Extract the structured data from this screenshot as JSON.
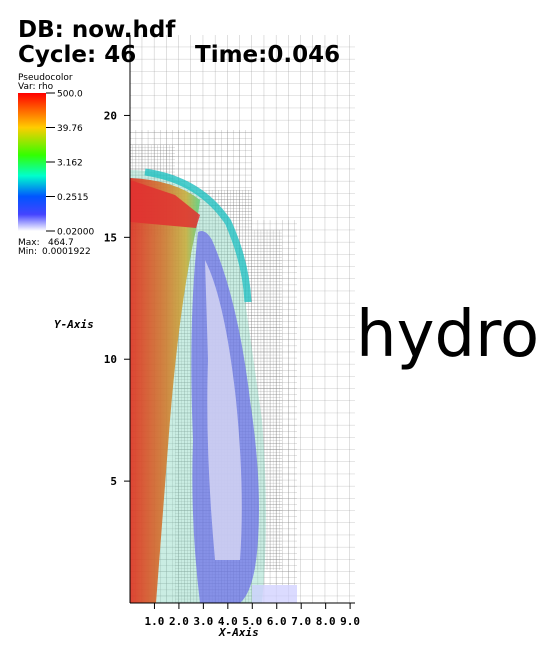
{
  "header": {
    "database": "DB: now.hdf",
    "cycle": "Cycle: 46",
    "time": "Time:0.046"
  },
  "watermark": "hydro",
  "chart_data": {
    "type": "pseudocolor",
    "x_label": "X-Axis",
    "y_label": "Y-Axis",
    "xlim": [
      0,
      9.2
    ],
    "ylim": [
      0,
      23.3
    ],
    "xticks": [
      {
        "value": 1,
        "label": "1.0"
      },
      {
        "value": 2,
        "label": "2.0"
      },
      {
        "value": 3,
        "label": "3.0"
      },
      {
        "value": 4,
        "label": "4.0"
      },
      {
        "value": 5,
        "label": "5.0"
      },
      {
        "value": 6,
        "label": "6.0"
      },
      {
        "value": 7,
        "label": "7.0"
      },
      {
        "value": 8,
        "label": "8.0"
      },
      {
        "value": 9,
        "label": "9.0"
      }
    ],
    "yticks": [
      5,
      10,
      15,
      20
    ],
    "legend": {
      "plot": "Pseudocolor",
      "variable": "Var: rho",
      "log": true,
      "range": [
        0.02,
        500
      ],
      "ticks": [
        {
          "value": 500,
          "label": "500.0"
        },
        39.76,
        3.162,
        0.2515,
        {
          "value": 0.02,
          "label": "0.02000"
        }
      ],
      "max_label": "Max:",
      "max": 464.7,
      "min_label": "Min:",
      "min": 0.0001922
    }
  }
}
